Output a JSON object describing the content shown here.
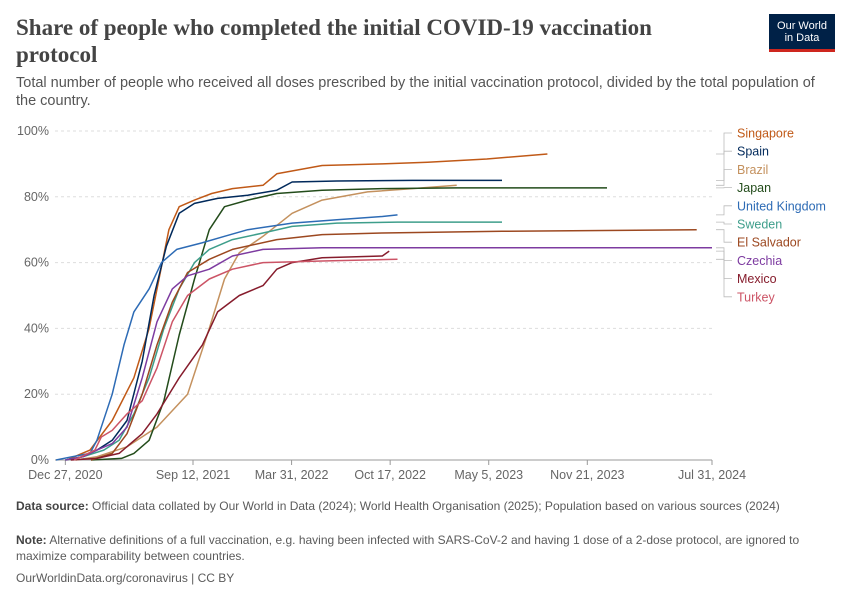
{
  "title": "Share of people who completed the initial COVID-19 vaccination protocol",
  "subtitle": "Total number of people who received all doses prescribed by the initial vaccination protocol, divided by the total population of the country.",
  "logo": {
    "line1": "Our World",
    "line2": "in Data"
  },
  "footer": {
    "source_label": "Data source:",
    "source_text": "Official data collated by Our World in Data (2024); World Health Organisation (2025); Population based on various sources (2024)",
    "note_label": "Note:",
    "note_text": "Alternative definitions of a full vaccination, e.g. having been infected with SARS-CoV-2 and having 1 dose of a 2-dose protocol, are ignored to maximize comparability between countries.",
    "link": "OurWorldinData.org/coronavirus | CC BY"
  },
  "chart_data": {
    "type": "line",
    "title": "Share of people who completed the initial COVID-19 vaccination protocol",
    "x_type": "date",
    "x_ticks": [
      {
        "date": "2020-12-27",
        "label": "Dec 27, 2020"
      },
      {
        "date": "2021-09-12",
        "label": "Sep 12, 2021"
      },
      {
        "date": "2022-03-31",
        "label": "Mar 31, 2022"
      },
      {
        "date": "2022-10-17",
        "label": "Oct 17, 2022"
      },
      {
        "date": "2023-05-05",
        "label": "May 5, 2023"
      },
      {
        "date": "2023-11-21",
        "label": "Nov 21, 2023"
      },
      {
        "date": "2024-07-31",
        "label": "Jul 31, 2024"
      }
    ],
    "y_ticks": [
      {
        "value": 0,
        "label": "0%"
      },
      {
        "value": 20,
        "label": "20%"
      },
      {
        "value": 40,
        "label": "40%"
      },
      {
        "value": 60,
        "label": "60%"
      },
      {
        "value": 80,
        "label": "80%"
      },
      {
        "value": 100,
        "label": "100%"
      }
    ],
    "ylim": [
      0,
      100
    ],
    "xlim": [
      "2020-12-06",
      "2024-07-31"
    ],
    "grid": "horizontal dashed",
    "legend": "right, labels at line ends",
    "series": [
      {
        "name": "Singapore",
        "color": "#c05917",
        "points": [
          [
            "2020-12-30",
            0
          ],
          [
            "2021-02-15",
            3
          ],
          [
            "2021-04-01",
            12
          ],
          [
            "2021-05-15",
            25
          ],
          [
            "2021-06-15",
            40
          ],
          [
            "2021-07-05",
            55
          ],
          [
            "2021-07-25",
            70
          ],
          [
            "2021-08-15",
            77
          ],
          [
            "2021-09-15",
            79
          ],
          [
            "2021-10-20",
            81
          ],
          [
            "2021-12-01",
            82.5
          ],
          [
            "2022-02-01",
            83.5
          ],
          [
            "2022-03-01",
            87
          ],
          [
            "2022-06-01",
            89.5
          ],
          [
            "2022-10-01",
            90
          ],
          [
            "2023-01-01",
            90.5
          ],
          [
            "2023-05-01",
            91.5
          ],
          [
            "2023-09-01",
            93
          ]
        ]
      },
      {
        "name": "Spain",
        "color": "#00295b",
        "points": [
          [
            "2020-12-27",
            0
          ],
          [
            "2021-02-01",
            1
          ],
          [
            "2021-03-01",
            3
          ],
          [
            "2021-04-01",
            6
          ],
          [
            "2021-05-01",
            12
          ],
          [
            "2021-06-01",
            30
          ],
          [
            "2021-06-25",
            50
          ],
          [
            "2021-07-20",
            65
          ],
          [
            "2021-08-15",
            75
          ],
          [
            "2021-09-15",
            78
          ],
          [
            "2021-11-01",
            79.5
          ],
          [
            "2022-01-01",
            80.5
          ],
          [
            "2022-03-01",
            82
          ],
          [
            "2022-04-01",
            84.5
          ],
          [
            "2022-07-01",
            84.8
          ],
          [
            "2022-12-01",
            85
          ],
          [
            "2023-06-01",
            85
          ]
        ]
      },
      {
        "name": "Brazil",
        "color": "#c4915e",
        "points": [
          [
            "2021-01-17",
            0
          ],
          [
            "2021-03-01",
            1
          ],
          [
            "2021-05-01",
            4
          ],
          [
            "2021-07-01",
            10
          ],
          [
            "2021-09-01",
            20
          ],
          [
            "2021-10-15",
            40
          ],
          [
            "2021-11-15",
            55
          ],
          [
            "2021-12-15",
            63
          ],
          [
            "2022-02-01",
            68
          ],
          [
            "2022-04-01",
            75
          ],
          [
            "2022-06-01",
            79
          ],
          [
            "2022-09-01",
            81.5
          ],
          [
            "2022-12-01",
            82.5
          ],
          [
            "2023-03-01",
            83.5
          ]
        ]
      },
      {
        "name": "Japan",
        "color": "#234c1b",
        "points": [
          [
            "2021-02-17",
            0
          ],
          [
            "2021-04-20",
            0.5
          ],
          [
            "2021-05-15",
            2
          ],
          [
            "2021-06-15",
            6
          ],
          [
            "2021-07-15",
            18
          ],
          [
            "2021-08-15",
            38
          ],
          [
            "2021-09-15",
            55
          ],
          [
            "2021-10-15",
            70
          ],
          [
            "2021-11-15",
            77
          ],
          [
            "2022-01-01",
            79
          ],
          [
            "2022-03-01",
            81
          ],
          [
            "2022-06-01",
            82
          ],
          [
            "2022-10-01",
            82.5
          ],
          [
            "2023-03-01",
            82.7
          ],
          [
            "2023-12-31",
            82.7
          ]
        ]
      },
      {
        "name": "United Kingdom",
        "color": "#2d6bb5",
        "points": [
          [
            "2020-12-08",
            0
          ],
          [
            "2021-01-10",
            1
          ],
          [
            "2021-02-15",
            2
          ],
          [
            "2021-03-01",
            6
          ],
          [
            "2021-04-01",
            20
          ],
          [
            "2021-04-25",
            35
          ],
          [
            "2021-05-15",
            45
          ],
          [
            "2021-06-15",
            52
          ],
          [
            "2021-07-10",
            60
          ],
          [
            "2021-08-10",
            64
          ],
          [
            "2021-09-30",
            66
          ],
          [
            "2021-11-15",
            68
          ],
          [
            "2022-01-01",
            70
          ],
          [
            "2022-04-01",
            72
          ],
          [
            "2022-07-01",
            73
          ],
          [
            "2022-10-01",
            74
          ],
          [
            "2022-11-01",
            74.5
          ]
        ]
      },
      {
        "name": "Sweden",
        "color": "#3e9e8b",
        "points": [
          [
            "2020-12-27",
            0
          ],
          [
            "2021-02-01",
            1
          ],
          [
            "2021-03-15",
            3
          ],
          [
            "2021-04-15",
            6
          ],
          [
            "2021-05-15",
            14
          ],
          [
            "2021-06-15",
            25
          ],
          [
            "2021-07-15",
            40
          ],
          [
            "2021-08-15",
            52
          ],
          [
            "2021-09-15",
            60
          ],
          [
            "2021-10-15",
            64
          ],
          [
            "2021-12-01",
            67
          ],
          [
            "2022-02-01",
            69
          ],
          [
            "2022-04-01",
            71
          ],
          [
            "2022-07-01",
            72
          ],
          [
            "2022-11-01",
            72.3
          ],
          [
            "2023-06-01",
            72.3
          ]
        ]
      },
      {
        "name": "El Salvador",
        "color": "#9c4820",
        "points": [
          [
            "2021-02-17",
            0
          ],
          [
            "2021-04-01",
            2
          ],
          [
            "2021-05-01",
            8
          ],
          [
            "2021-06-01",
            20
          ],
          [
            "2021-07-01",
            35
          ],
          [
            "2021-08-01",
            48
          ],
          [
            "2021-09-01",
            57
          ],
          [
            "2021-10-15",
            61
          ],
          [
            "2021-12-01",
            64
          ],
          [
            "2022-03-01",
            67
          ],
          [
            "2022-06-01",
            68.5
          ],
          [
            "2022-10-01",
            69
          ],
          [
            "2023-06-01",
            69.5
          ],
          [
            "2024-06-30",
            70
          ]
        ]
      },
      {
        "name": "Czechia",
        "color": "#7d3ba0",
        "points": [
          [
            "2020-12-27",
            0
          ],
          [
            "2021-02-01",
            1
          ],
          [
            "2021-03-01",
            3
          ],
          [
            "2021-04-01",
            5
          ],
          [
            "2021-05-01",
            10
          ],
          [
            "2021-06-01",
            25
          ],
          [
            "2021-07-01",
            42
          ],
          [
            "2021-08-01",
            52
          ],
          [
            "2021-09-01",
            56
          ],
          [
            "2021-10-15",
            58
          ],
          [
            "2021-12-01",
            62
          ],
          [
            "2022-02-01",
            64
          ],
          [
            "2022-06-01",
            64.5
          ],
          [
            "2023-06-01",
            64.5
          ],
          [
            "2024-07-31",
            64.5
          ]
        ]
      },
      {
        "name": "Mexico",
        "color": "#861c2c",
        "points": [
          [
            "2021-01-07",
            0
          ],
          [
            "2021-03-01",
            0.5
          ],
          [
            "2021-04-15",
            2
          ],
          [
            "2021-06-01",
            8
          ],
          [
            "2021-07-01",
            14
          ],
          [
            "2021-08-15",
            25
          ],
          [
            "2021-10-01",
            35
          ],
          [
            "2021-11-01",
            45
          ],
          [
            "2021-12-15",
            50
          ],
          [
            "2022-02-01",
            53
          ],
          [
            "2022-03-01",
            58
          ],
          [
            "2022-04-01",
            60
          ],
          [
            "2022-06-01",
            61.5
          ],
          [
            "2022-10-01",
            62
          ],
          [
            "2022-10-15",
            63.5
          ]
        ]
      },
      {
        "name": "Turkey",
        "color": "#cc5466",
        "points": [
          [
            "2021-01-14",
            0
          ],
          [
            "2021-02-25",
            3
          ],
          [
            "2021-03-10",
            7
          ],
          [
            "2021-04-01",
            9
          ],
          [
            "2021-05-01",
            14
          ],
          [
            "2021-06-01",
            18
          ],
          [
            "2021-07-01",
            28
          ],
          [
            "2021-08-01",
            42
          ],
          [
            "2021-09-01",
            50
          ],
          [
            "2021-10-15",
            55
          ],
          [
            "2021-12-01",
            58
          ],
          [
            "2022-02-01",
            60
          ],
          [
            "2022-06-01",
            60.5
          ],
          [
            "2022-11-01",
            61
          ]
        ]
      }
    ]
  }
}
